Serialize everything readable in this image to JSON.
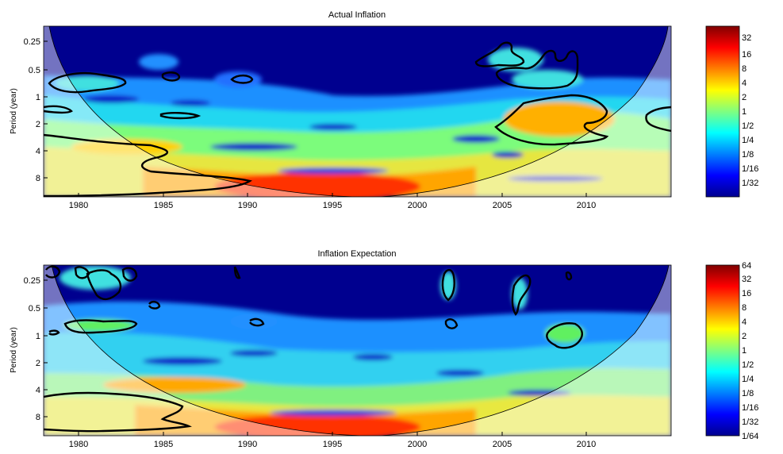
{
  "figure": {
    "type": "wavelet power spectrum",
    "panels": [
      {
        "id": "actual-inflation",
        "title": "Actual Inflation",
        "ylabel": "Period (year)",
        "colorbar_ticks": [
          "32",
          "16",
          "8",
          "4",
          "2",
          "1",
          "1/2",
          "1/4",
          "1/8",
          "1/16",
          "1/32"
        ]
      },
      {
        "id": "inflation-expectation",
        "title": "Inflation Expectation",
        "ylabel": "Period (year)",
        "colorbar_ticks": [
          "64",
          "32",
          "16",
          "8",
          "4",
          "2",
          "1",
          "1/2",
          "1/4",
          "1/8",
          "1/16",
          "1/32",
          "1/64"
        ]
      }
    ]
  },
  "chart_data": [
    {
      "type": "heatmap",
      "title": "Actual Inflation",
      "xlabel": "",
      "ylabel": "Period (year)",
      "xlim": [
        1978,
        2015
      ],
      "ylim_period_years": [
        0.18,
        11.5
      ],
      "y_scale": "log2",
      "y_reversed": true,
      "x_ticks": [
        1980,
        1985,
        1990,
        1995,
        2000,
        2005,
        2010
      ],
      "y_ticks": [
        "0.25",
        "0.5",
        "1",
        "2",
        "4",
        "8"
      ],
      "color_scale": "jet",
      "colorbar_range_log2": [
        -6,
        6
      ],
      "colorbar_labels": [
        "32",
        "16",
        "8",
        "4",
        "2",
        "1",
        "1/2",
        "1/4",
        "1/8",
        "1/16",
        "1/32"
      ],
      "cone_of_influence": true,
      "significance_contours": [
        {
          "x": [
            1980,
            1984
          ],
          "period": [
            0.7,
            0.8
          ]
        },
        {
          "x": [
            1985,
            1986
          ],
          "period": [
            0.5,
            0.6
          ]
        },
        {
          "x": [
            1989.2,
            1990.2
          ],
          "period": [
            0.55,
            0.65
          ]
        },
        {
          "x": [
            1985.3,
            1987.3
          ],
          "period": [
            1.5,
            1.7
          ]
        },
        {
          "x": [
            2003.5,
            2006.5
          ],
          "period": [
            0.28,
            0.45
          ]
        },
        {
          "x": [
            2005,
            2010
          ],
          "period": [
            0.6,
            0.9
          ]
        },
        {
          "x": [
            2005,
            2011
          ],
          "period": [
            1.1,
            3.5
          ]
        },
        {
          "x": [
            2012.5,
            2015
          ],
          "period": [
            1.0,
            2.5
          ]
        },
        {
          "x": [
            1978,
            1987
          ],
          "period": [
            3.5,
            12
          ]
        }
      ],
      "hotspots": [
        {
          "x": 1995,
          "period": 8,
          "power": "max"
        },
        {
          "x": 2008,
          "period": 2,
          "power": 3
        },
        {
          "x": 1985,
          "period": 4,
          "power": 1
        }
      ]
    },
    {
      "type": "heatmap",
      "title": "Inflation Expectation",
      "xlabel": "",
      "ylabel": "Period (year)",
      "xlim": [
        1978,
        2015
      ],
      "ylim_period_years": [
        0.18,
        11.5
      ],
      "y_scale": "log2",
      "y_reversed": true,
      "x_ticks": [
        1980,
        1985,
        1990,
        1995,
        2000,
        2005,
        2010
      ],
      "y_ticks": [
        "0.25",
        "0.5",
        "1",
        "2",
        "4",
        "8"
      ],
      "color_scale": "jet",
      "colorbar_range_log2": [
        -6,
        6
      ],
      "colorbar_labels": [
        "64",
        "32",
        "16",
        "8",
        "4",
        "2",
        "1",
        "1/2",
        "1/4",
        "1/8",
        "1/16",
        "1/32",
        "1/64"
      ],
      "cone_of_influence": true,
      "significance_contours": [
        {
          "x": [
            1978,
            1979
          ],
          "period": [
            0.18,
            0.5
          ]
        },
        {
          "x": [
            1979.5,
            1981.5
          ],
          "period": [
            0.18,
            0.35
          ]
        },
        {
          "x": [
            1981,
            1983.5
          ],
          "period": [
            0.22,
            0.45
          ]
        },
        {
          "x": [
            1980,
            1983.5
          ],
          "period": [
            0.8,
            1.05
          ]
        },
        {
          "x": [
            1984,
            1984.8
          ],
          "period": [
            0.5,
            0.55
          ]
        },
        {
          "x": [
            1990.2,
            1991
          ],
          "period": [
            0.8,
            0.85
          ]
        },
        {
          "x": [
            2001.5,
            2002.3
          ],
          "period": [
            0.22,
            0.38
          ]
        },
        {
          "x": [
            2001.8,
            2002.6
          ],
          "period": [
            0.8,
            0.9
          ]
        },
        {
          "x": [
            2005.7,
            2006.7
          ],
          "period": [
            0.25,
            0.65
          ]
        },
        {
          "x": [
            2008,
            2010
          ],
          "period": [
            0.85,
            1.4
          ]
        },
        {
          "x": [
            1978,
            1987
          ],
          "period": [
            4.5,
            10.5
          ]
        }
      ],
      "hotspots": [
        {
          "x": 1995,
          "period": 8,
          "power": "max"
        },
        {
          "x": 1985,
          "period": 4,
          "power": 2
        }
      ]
    }
  ]
}
